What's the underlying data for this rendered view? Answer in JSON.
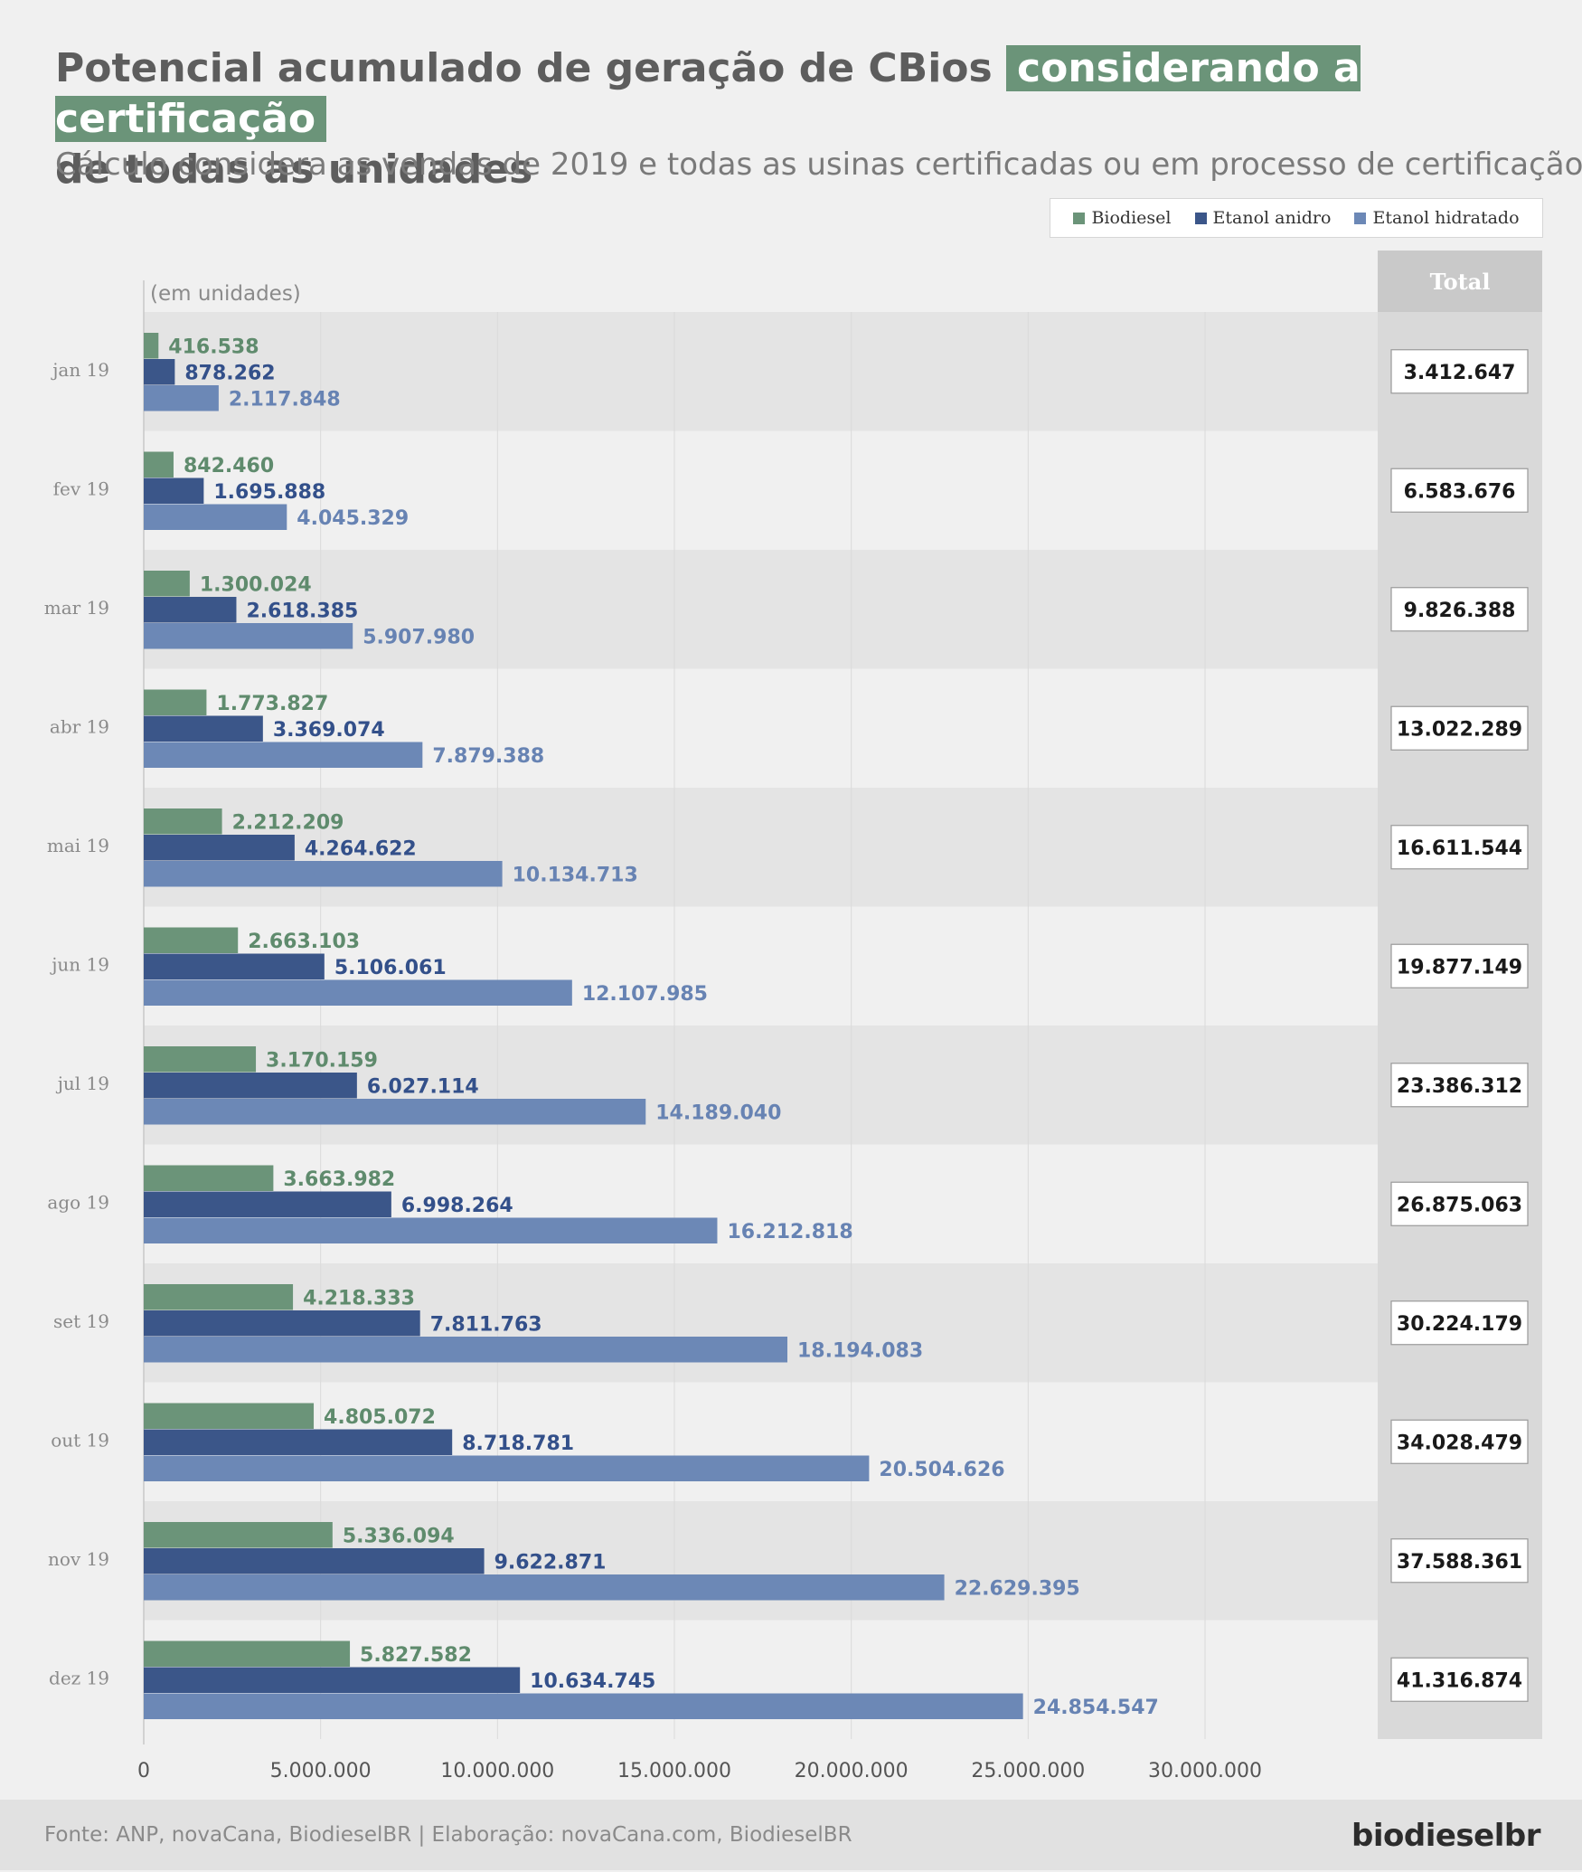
{
  "title_part1": "Potencial acumulado de geração de CBios",
  "title_highlight": "considerando a certificação",
  "title_part2": "de todas as unidades",
  "subtitle": "Cálculo considera as vendas de 2019 e todas as usinas certificadas ou em processo de certificação",
  "units_label": "(em unidades)",
  "total_header": "Total",
  "footer": {
    "source": "Fonte: ANP, novaCana, BiodieselBR | Elaboração: novaCana.com, BiodieselBR",
    "logo": "biodieselbr"
  },
  "colors": {
    "biodiesel": "#6b9479",
    "anidro": "#3b5689",
    "hidratado": "#6c88b6"
  },
  "chart_data": {
    "type": "bar",
    "orientation": "horizontal",
    "categories": [
      "jan 19",
      "fev 19",
      "mar 19",
      "abr 19",
      "mai 19",
      "jun 19",
      "jul 19",
      "ago 19",
      "set 19",
      "out 19",
      "nov 19",
      "dez 19"
    ],
    "series": [
      {
        "name": "Biodiesel",
        "key": "biodiesel",
        "values": [
          416538,
          842460,
          1300024,
          1773827,
          2212209,
          2663103,
          3170159,
          3663982,
          4218333,
          4805072,
          5336094,
          5827582
        ],
        "labels": [
          "416.538",
          "842.460",
          "1.300.024",
          "1.773.827",
          "2.212.209",
          "2.663.103",
          "3.170.159",
          "3.663.982",
          "4.218.333",
          "4.805.072",
          "5.336.094",
          "5.827.582"
        ]
      },
      {
        "name": "Etanol anidro",
        "key": "anidro",
        "values": [
          878262,
          1695888,
          2618385,
          3369074,
          4264622,
          5106061,
          6027114,
          6998264,
          7811763,
          8718781,
          9622871,
          10634745
        ],
        "labels": [
          "878.262",
          "1.695.888",
          "2.618.385",
          "3.369.074",
          "4.264.622",
          "5.106.061",
          "6.027.114",
          "6.998.264",
          "7.811.763",
          "8.718.781",
          "9.622.871",
          "10.634.745"
        ]
      },
      {
        "name": "Etanol hidratado",
        "key": "hidratado",
        "values": [
          2117848,
          4045329,
          5907980,
          7879388,
          10134713,
          12107985,
          14189040,
          16212818,
          18194083,
          20504626,
          22629395,
          24854547
        ],
        "labels": [
          "2.117.848",
          "4.045.329",
          "5.907.980",
          "7.879.388",
          "10.134.713",
          "12.107.985",
          "14.189.040",
          "16.212.818",
          "18.194.083",
          "20.504.626",
          "22.629.395",
          "24.854.547"
        ]
      }
    ],
    "totals": [
      "3.412.647",
      "6.583.676",
      "9.826.388",
      "13.022.289",
      "16.611.544",
      "19.877.149",
      "23.386.312",
      "26.875.063",
      "30.224.179",
      "34.028.479",
      "37.588.361",
      "41.316.874"
    ],
    "xlim": [
      0,
      35000000
    ],
    "xticks": [
      0,
      5000000,
      10000000,
      15000000,
      20000000,
      25000000,
      30000000
    ],
    "xtick_labels": [
      "0",
      "5.000.000",
      "10.000.000",
      "15.000.000",
      "20.000.000",
      "25.000.000",
      "30.000.000"
    ],
    "legend_position": "top-right",
    "grid": true
  }
}
